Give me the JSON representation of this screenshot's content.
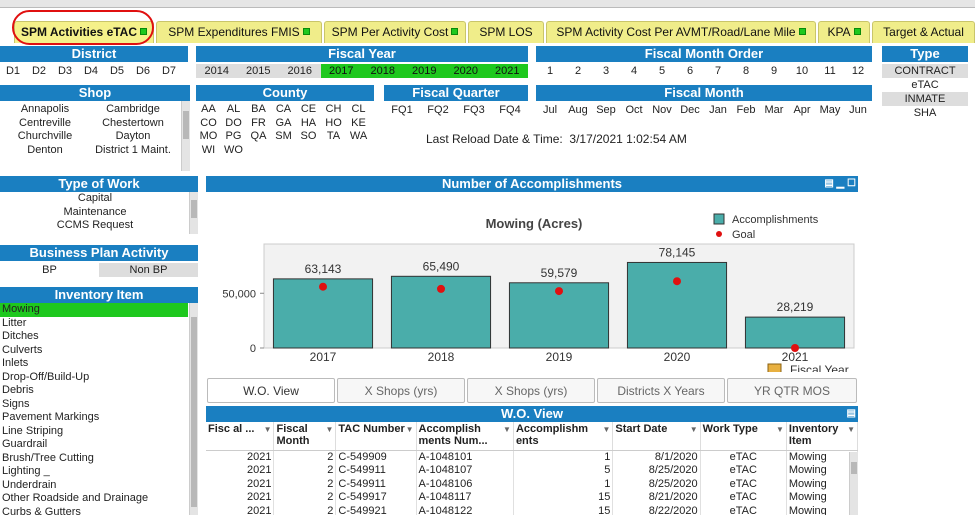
{
  "tabs": [
    {
      "label": "SPM Activities eTAC",
      "active": true
    },
    {
      "label": "SPM Expenditures FMIS"
    },
    {
      "label": "SPM Per Activity Cost"
    },
    {
      "label": "SPM LOS"
    },
    {
      "label": "SPM Activity Cost Per AVMT/Road/Lane Mile"
    },
    {
      "label": "KPA"
    },
    {
      "label": "Target & Actual"
    }
  ],
  "district": {
    "title": "District",
    "items": [
      "D1",
      "D2",
      "D3",
      "D4",
      "D5",
      "D6",
      "D7"
    ]
  },
  "fiscal_year": {
    "title": "Fiscal Year",
    "items": [
      "2014",
      "2015",
      "2016",
      "2017",
      "2018",
      "2019",
      "2020",
      "2021"
    ],
    "selected": [
      "2017",
      "2018",
      "2019",
      "2020",
      "2021"
    ]
  },
  "fiscal_month_order": {
    "title": "Fiscal Month Order",
    "items": [
      "1",
      "2",
      "3",
      "4",
      "5",
      "6",
      "7",
      "8",
      "9",
      "10",
      "11",
      "12"
    ]
  },
  "type": {
    "title": "Type",
    "items": [
      "CONTRACT",
      "eTAC",
      "INMATE",
      "SHA"
    ]
  },
  "shop": {
    "title": "Shop",
    "col1": [
      "Annapolis",
      "Centreville",
      "Churchville",
      "Denton"
    ],
    "col2": [
      "Cambridge",
      "Chestertown",
      "Dayton",
      "District 1 Maint."
    ]
  },
  "county": {
    "title": "County",
    "rows": [
      [
        "AA",
        "AL",
        "BA",
        "CA",
        "CE",
        "CH",
        "CL"
      ],
      [
        "CO",
        "DO",
        "FR",
        "GA",
        "HA",
        "HO",
        "KE"
      ],
      [
        "MO",
        "PG",
        "QA",
        "SM",
        "SO",
        "TA",
        "WA"
      ],
      [
        "WI",
        "WO"
      ]
    ]
  },
  "fiscal_quarter": {
    "title": "Fiscal Quarter",
    "items": [
      "FQ1",
      "FQ2",
      "FQ3",
      "FQ4"
    ]
  },
  "fiscal_month": {
    "title": "Fiscal Month",
    "items": [
      "Jul",
      "Aug",
      "Sep",
      "Oct",
      "Nov",
      "Dec",
      "Jan",
      "Feb",
      "Mar",
      "Apr",
      "May",
      "Jun"
    ]
  },
  "reload": {
    "label": "Last Reload Date & Time:",
    "value": "3/17/2021 1:02:54 AM"
  },
  "type_of_work": {
    "title": "Type of Work",
    "items": [
      "Capital",
      "Maintenance",
      "CCMS Request"
    ]
  },
  "business_plan": {
    "title": "Business Plan Activity",
    "items": [
      "BP",
      "Non BP"
    ]
  },
  "inventory": {
    "title": "Inventory Item",
    "items": [
      "Mowing",
      "Litter",
      "Ditches",
      "Culverts",
      "Inlets",
      "Drop-Off/Build-Up",
      "Debris",
      "Signs",
      "Pavement Markings",
      "Line  Striping",
      "Guardrail",
      "Brush/Tree Cutting",
      "Lighting _",
      "Underdrain",
      "Other Roadside and Drainage",
      "Curbs & Gutters"
    ]
  },
  "chart_panel_title": "Number of Accomplishments",
  "chart_data": {
    "type": "bar",
    "title": "Mowing (Acres)",
    "categories": [
      "2017",
      "2018",
      "2019",
      "2020",
      "2021"
    ],
    "series": [
      {
        "name": "Accomplishments",
        "values": [
          63143,
          65490,
          59579,
          78145,
          28219
        ],
        "color": "#4aadaa"
      },
      {
        "name": "Goal",
        "values": [
          56000,
          54000,
          52000,
          61000,
          0
        ],
        "color": "#e01010"
      }
    ],
    "data_labels": [
      "63,143",
      "65,490",
      "59,579",
      "78,145",
      "28,219"
    ],
    "xlabel": "Fiscal Year",
    "yticks": [
      0,
      50000
    ],
    "ytick_labels": [
      "0",
      "50,000"
    ],
    "ylim": [
      0,
      95000
    ],
    "legend": "top-right"
  },
  "view_tabs": [
    "W.O. View",
    "X Shops (yrs)",
    "X Shops (yrs)",
    "Districts X Years",
    "YR QTR MOS"
  ],
  "wo": {
    "title": "W.O. View",
    "headers": [
      "Fisc al ...",
      "Fiscal Month",
      "TAC Number",
      "Accomplish ments Num...",
      "Accomplishm ents",
      "Start Date",
      "Work Type",
      "Inventory Item"
    ],
    "rows": [
      [
        "2021",
        "2",
        "C-549909",
        "A-1048101",
        "1",
        "8/1/2020",
        "eTAC",
        "Mowing"
      ],
      [
        "2021",
        "2",
        "C-549911",
        "A-1048107",
        "5",
        "8/25/2020",
        "eTAC",
        "Mowing"
      ],
      [
        "2021",
        "2",
        "C-549911",
        "A-1048106",
        "1",
        "8/25/2020",
        "eTAC",
        "Mowing"
      ],
      [
        "2021",
        "2",
        "C-549917",
        "A-1048117",
        "15",
        "8/21/2020",
        "eTAC",
        "Mowing"
      ],
      [
        "2021",
        "2",
        "C-549921",
        "A-1048122",
        "15",
        "8/22/2020",
        "eTAC",
        "Mowing"
      ]
    ]
  },
  "colors": {
    "header_blue": "#1a7fc1",
    "selected_green": "#1ec81e",
    "tab_yellow": "#f0ed8a",
    "bar_teal": "#4aadaa",
    "goal_red": "#e01010"
  },
  "icons": [
    "green-status-square-icon",
    "minimize-icon",
    "export-icon",
    "maximize-icon",
    "drill-up-icon"
  ]
}
